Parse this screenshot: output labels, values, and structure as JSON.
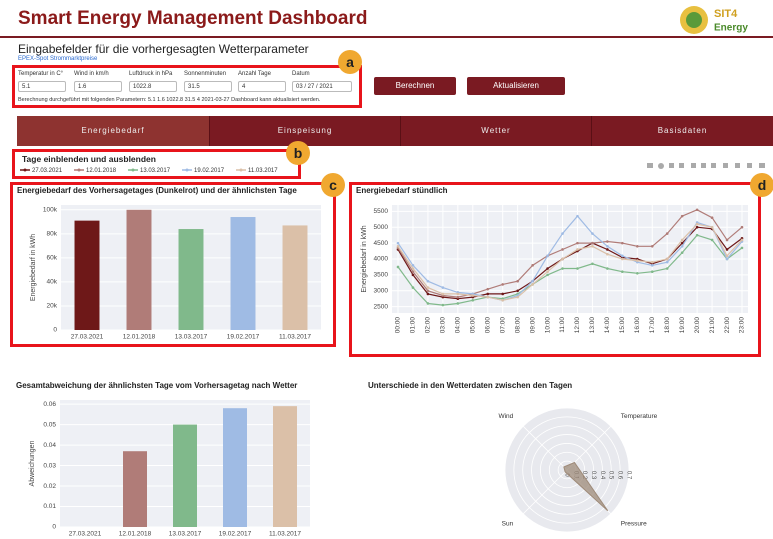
{
  "header": {
    "title": "Smart Energy Management Dashboard",
    "logo_top": "SIT4",
    "logo_bottom": "Energy"
  },
  "form": {
    "title": "Eingabefelder für die vorhergesagten Wetterparameter",
    "link": "EPEX-Spot Strommarktpreise",
    "fields": [
      {
        "label": "Temperatur in C°",
        "value": "5.1"
      },
      {
        "label": "Wind in km/h",
        "value": "1.6"
      },
      {
        "label": "Luftdruck in hPa",
        "value": "1022.8"
      },
      {
        "label": "Sonnenminuten",
        "value": "31.5"
      },
      {
        "label": "Anzahl Tage",
        "value": "4"
      },
      {
        "label": "Datum",
        "value": "03 / 27 / 2021"
      }
    ],
    "status": "Berechnung durchgeführt mit folgenden Parametern: 5.1 1.6 1022.8 31.5 4 2021-03-27 Dashboard kann aktualisiert werden.",
    "buttons": [
      "Berechnen",
      "Aktualisieren"
    ]
  },
  "tabs": [
    "Energiebedarf",
    "Einspeisung",
    "Wetter",
    "Basisdaten"
  ],
  "days": {
    "title": "Tage einblenden und ausblenden"
  },
  "annotations": [
    "a",
    "b",
    "c",
    "d"
  ],
  "chart_data": [
    {
      "type": "bar",
      "title": "Energiebedarf des Vorhersagetages (Dunkelrot) und der ähnlichsten Tage",
      "y_label": "Energiebedarf in kWh",
      "categories": [
        "27.03.2021",
        "12.01.2018",
        "13.03.2017",
        "19.02.2017",
        "11.03.2017"
      ],
      "values": [
        91000,
        100000,
        84000,
        94000,
        87000
      ],
      "colors": [
        "#6e1818",
        "#b07c78",
        "#80b98b",
        "#9fbbe4",
        "#dbc0a8"
      ],
      "ylim": [
        0,
        104000
      ],
      "yticks": [
        0,
        {
          "value": 20000,
          "label": "20k"
        },
        {
          "value": 40000,
          "label": "40k"
        },
        {
          "value": 60000,
          "label": "60k"
        },
        {
          "value": 80000,
          "label": "80k"
        },
        {
          "value": 100000,
          "label": "100k"
        }
      ],
      "grid": true
    },
    {
      "type": "line",
      "title": "Energiebedarf stündlich",
      "y_label": "Energiebedarf in kWh",
      "categories": [
        "00:00",
        "01:00",
        "02:00",
        "03:00",
        "04:00",
        "05:00",
        "06:00",
        "07:00",
        "08:00",
        "09:00",
        "10:00",
        "11:00",
        "12:00",
        "13:00",
        "14:00",
        "15:00",
        "16:00",
        "17:00",
        "18:00",
        "19:00",
        "20:00",
        "21:00",
        "22:00",
        "23:00"
      ],
      "series": [
        {
          "name": "27.03.2021",
          "color": "#6e1818",
          "values": [
            4300,
            3500,
            2900,
            2800,
            2750,
            2800,
            2900,
            2900,
            3000,
            3300,
            3700,
            4000,
            4250,
            4500,
            4300,
            4050,
            4000,
            3850,
            4000,
            4500,
            5000,
            4950,
            4300,
            4650
          ]
        },
        {
          "name": "12.01.2018",
          "color": "#b07c78",
          "values": [
            4350,
            3600,
            3000,
            2850,
            2800,
            2900,
            3050,
            3200,
            3300,
            3800,
            4100,
            4300,
            4500,
            4500,
            4550,
            4500,
            4400,
            4400,
            4800,
            5350,
            5550,
            5300,
            4600,
            5000
          ]
        },
        {
          "name": "13.03.2017",
          "color": "#80b98b",
          "values": [
            3750,
            3100,
            2600,
            2550,
            2600,
            2700,
            2800,
            2750,
            2900,
            3200,
            3500,
            3700,
            3700,
            3850,
            3700,
            3600,
            3550,
            3600,
            3700,
            4200,
            4750,
            4600,
            4000,
            4350
          ]
        },
        {
          "name": "19.02.2017",
          "color": "#9fbbe4",
          "values": [
            4500,
            3800,
            3300,
            3100,
            2950,
            2900,
            2800,
            2700,
            2850,
            3300,
            4100,
            4800,
            5350,
            4800,
            4400,
            4100,
            3900,
            3800,
            3900,
            4400,
            5150,
            5000,
            4000,
            4550
          ]
        },
        {
          "name": "11.03.2017",
          "color": "#dbc0a8",
          "values": [
            4400,
            3700,
            3100,
            2900,
            2900,
            2850,
            2800,
            2700,
            2800,
            3200,
            3600,
            4000,
            4300,
            4400,
            4150,
            4000,
            3950,
            3900,
            4000,
            4600,
            5100,
            5000,
            4100,
            4600
          ]
        }
      ],
      "ylim": [
        2300,
        5700
      ],
      "yticks": [
        2500,
        3000,
        3500,
        4000,
        4500,
        5000,
        5500
      ],
      "grid": true
    },
    {
      "type": "bar",
      "title": "Gesamtabweichung der ähnlichsten Tage vom Vorhersagetag nach Wetter",
      "y_label": "Abweichungen",
      "categories": [
        "27.03.2021",
        "12.01.2018",
        "13.03.2017",
        "19.02.2017",
        "11.03.2017"
      ],
      "values": [
        0,
        0.037,
        0.05,
        0.058,
        0.059
      ],
      "colors": [
        "#6e1818",
        "#b07c78",
        "#80b98b",
        "#9fbbe4",
        "#dbc0a8"
      ],
      "ylim": [
        0,
        0.062
      ],
      "yticks": [
        0,
        0.01,
        0.02,
        0.03,
        0.04,
        0.05,
        0.06
      ],
      "grid": true
    },
    {
      "type": "radar",
      "title": "Unterschiede in den Wetterdaten zwischen den Tagen",
      "categories": [
        "Temperature",
        "Pressure",
        "Sun",
        "Wind"
      ],
      "values": [
        0.12,
        0.65,
        0.03,
        0.05
      ],
      "color": "#9e8a78",
      "rlim": [
        0,
        0.7
      ],
      "rticks": [
        0,
        0.1,
        0.2,
        0.3,
        0.4,
        0.5,
        0.6,
        0.7
      ]
    }
  ]
}
